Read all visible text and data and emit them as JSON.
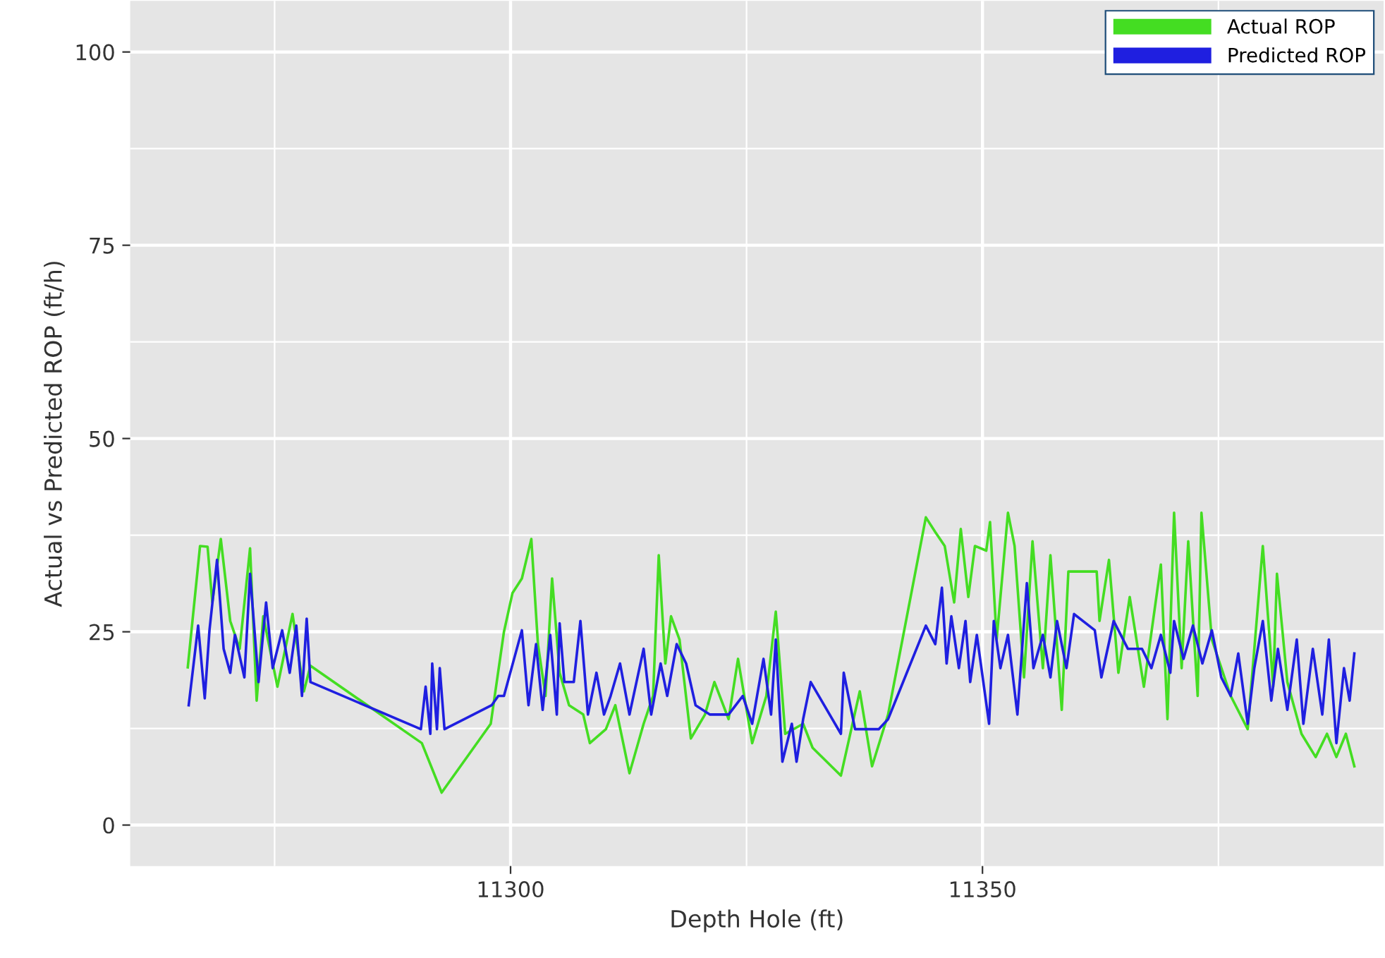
{
  "chart_data": {
    "type": "line",
    "xlabel": "Depth Hole (ft)",
    "ylabel": "Actual vs Predicted ROP (ft/h)",
    "xlim": [
      11259.7,
      11392.5
    ],
    "ylim": [
      -5.3,
      106.6
    ],
    "xticks": [
      11300,
      11350
    ],
    "yticks": [
      0,
      25,
      50,
      75,
      100
    ],
    "grid": true,
    "legend": "top right",
    "marker": "none",
    "line_style": "solid",
    "series": [
      {
        "name": "Actual ROP",
        "color": "#44dd22",
        "x": [
          11265.8,
          11267.1,
          11267.9,
          11268.4,
          11269.3,
          11270.3,
          11271.3,
          11272.4,
          11273.1,
          11273.8,
          11275.3,
          11276.9,
          11278.1,
          11278.8,
          11290.6,
          11292.7,
          11297.9,
          11299.3,
          11300.2,
          11301.2,
          11302.2,
          11302.9,
          11303.7,
          11304.4,
          11305.2,
          11306.2,
          11307.7,
          11308.4,
          11310.1,
          11311.1,
          11312.6,
          11314.1,
          11315.1,
          11315.7,
          11316.4,
          11317.0,
          11317.9,
          11319.1,
          11320.6,
          11321.6,
          11323.1,
          11324.1,
          11325.6,
          11327.1,
          11328.1,
          11329.1,
          11331.0,
          11332.0,
          11335.0,
          11337.0,
          11338.3,
          11340.0,
          11344.0,
          11345.0,
          11346.0,
          11347.0,
          11347.7,
          11348.5,
          11349.2,
          11350.4,
          11350.8,
          11351.5,
          11352.7,
          11353.4,
          11354.4,
          11355.3,
          11356.4,
          11357.2,
          11358.4,
          11359.1,
          11362.1,
          11362.4,
          11363.4,
          11364.4,
          11365.6,
          11367.1,
          11368.9,
          11369.6,
          11370.3,
          11371.1,
          11371.8,
          11372.8,
          11373.2,
          11374.3,
          11376.3,
          11378.1,
          11379.7,
          11380.8,
          11381.2,
          11382.3,
          11383.8,
          11385.3,
          11386.5,
          11387.5,
          11388.5,
          11389.4
        ],
        "values": [
          20.4,
          36.1,
          36.0,
          28.8,
          37.0,
          26.4,
          22.8,
          35.8,
          16.1,
          27.0,
          17.9,
          27.3,
          17.3,
          20.6,
          10.6,
          4.2,
          13.1,
          25.0,
          30.0,
          31.9,
          37.0,
          23.4,
          16.7,
          31.9,
          19.7,
          15.5,
          14.3,
          10.6,
          12.4,
          15.5,
          6.7,
          13.1,
          16.7,
          34.9,
          20.9,
          27.0,
          24.0,
          11.2,
          14.3,
          18.5,
          13.7,
          21.5,
          10.6,
          16.7,
          27.6,
          11.8,
          13.1,
          10.0,
          6.4,
          17.3,
          7.6,
          14.3,
          39.8,
          37.9,
          36.1,
          28.8,
          38.3,
          29.5,
          36.1,
          35.5,
          39.2,
          24.0,
          40.4,
          36.1,
          19.1,
          36.7,
          20.3,
          34.9,
          14.9,
          32.8,
          32.8,
          26.4,
          34.3,
          19.7,
          29.5,
          17.9,
          33.7,
          13.7,
          40.4,
          20.3,
          36.7,
          16.7,
          40.4,
          24.0,
          16.7,
          12.4,
          36.1,
          17.9,
          32.5,
          18.5,
          11.8,
          8.8,
          11.8,
          8.8,
          11.8,
          7.6
        ]
      },
      {
        "name": "Predicted ROP",
        "color": "#1f1fe0",
        "x": [
          11265.9,
          11266.9,
          11267.6,
          11268.1,
          11268.9,
          11269.6,
          11270.3,
          11270.8,
          11271.8,
          11272.4,
          11273.3,
          11274.1,
          11274.8,
          11275.8,
          11276.6,
          11277.3,
          11277.9,
          11278.4,
          11278.8,
          11290.5,
          11291.0,
          11291.5,
          11291.7,
          11292.2,
          11292.5,
          11293.0,
          11298.0,
          11298.7,
          11299.3,
          11301.2,
          11301.9,
          11302.7,
          11303.4,
          11304.2,
          11304.9,
          11305.2,
          11305.7,
          11306.7,
          11307.4,
          11308.2,
          11309.1,
          11309.9,
          11310.6,
          11311.6,
          11312.6,
          11314.1,
          11314.9,
          11315.9,
          11316.6,
          11317.6,
          11318.6,
          11319.6,
          11321.1,
          11323.1,
          11324.6,
          11325.6,
          11326.8,
          11327.6,
          11328.1,
          11328.8,
          11329.8,
          11330.3,
          11331.0,
          11331.8,
          11335.0,
          11335.3,
          11336.5,
          11339.0,
          11340.0,
          11344.0,
          11345.0,
          11345.7,
          11346.2,
          11346.7,
          11347.5,
          11348.2,
          11348.7,
          11349.4,
          11350.7,
          11351.2,
          11351.9,
          11352.7,
          11353.7,
          11354.7,
          11355.4,
          11356.4,
          11357.2,
          11357.9,
          11358.9,
          11359.7,
          11361.9,
          11362.6,
          11363.9,
          11365.4,
          11366.9,
          11367.9,
          11368.9,
          11369.9,
          11370.3,
          11371.3,
          11372.3,
          11373.3,
          11374.3,
          11375.3,
          11376.3,
          11377.1,
          11378.1,
          11378.8,
          11379.7,
          11380.6,
          11381.3,
          11382.3,
          11383.3,
          11384.0,
          11385.0,
          11386.0,
          11386.7,
          11387.5,
          11388.3,
          11388.9,
          11389.4
        ],
        "values": [
          15.5,
          25.8,
          16.4,
          25.2,
          34.3,
          22.8,
          19.7,
          24.6,
          19.1,
          32.5,
          18.5,
          28.8,
          20.3,
          25.2,
          19.7,
          25.8,
          16.7,
          26.7,
          18.5,
          12.4,
          17.9,
          11.8,
          20.9,
          12.4,
          20.3,
          12.4,
          15.5,
          16.7,
          16.7,
          25.2,
          15.5,
          23.4,
          14.9,
          24.6,
          14.3,
          26.1,
          18.5,
          18.5,
          26.4,
          14.3,
          19.7,
          14.3,
          16.7,
          20.9,
          14.3,
          22.8,
          14.3,
          20.9,
          16.7,
          23.4,
          20.9,
          15.5,
          14.3,
          14.3,
          16.7,
          13.1,
          21.5,
          14.3,
          24.0,
          8.2,
          13.1,
          8.2,
          13.7,
          18.5,
          11.8,
          19.7,
          12.4,
          12.4,
          13.7,
          25.8,
          23.4,
          30.7,
          20.9,
          27.0,
          20.3,
          26.4,
          18.5,
          24.6,
          13.1,
          26.4,
          20.3,
          24.6,
          14.3,
          31.3,
          20.3,
          24.6,
          19.1,
          26.4,
          20.3,
          27.3,
          25.2,
          19.1,
          26.4,
          22.8,
          22.8,
          20.3,
          24.6,
          19.7,
          26.4,
          21.5,
          25.8,
          20.9,
          25.2,
          19.1,
          16.7,
          22.2,
          13.1,
          20.3,
          26.4,
          16.1,
          22.8,
          14.9,
          24.0,
          13.1,
          22.8,
          14.3,
          24.0,
          10.6,
          20.3,
          16.1,
          22.2
        ]
      }
    ]
  }
}
